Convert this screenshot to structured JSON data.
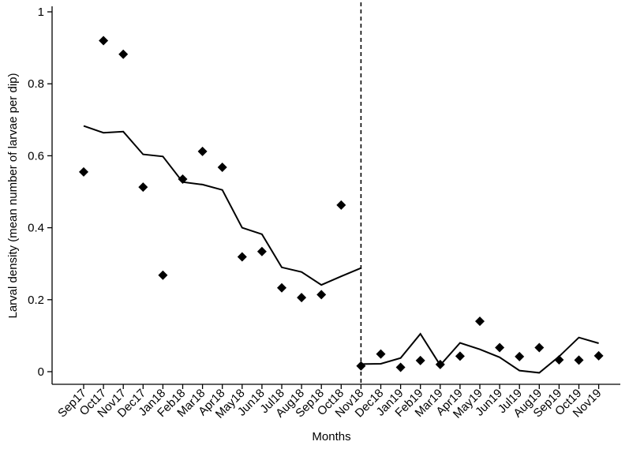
{
  "chart_data": {
    "type": "scatter",
    "title": "",
    "xlabel": "Months",
    "ylabel": "Larval density (mean number of larvae per dip)",
    "categories": [
      "Sep17",
      "Oct17",
      "Nov17",
      "Dec17",
      "Jan18",
      "Feb18",
      "Mar18",
      "Apr18",
      "May18",
      "Jun18",
      "Jul18",
      "Aug18",
      "Sep18",
      "Oct18",
      "Nov18",
      "Dec18",
      "Jan19",
      "Feb19",
      "Mar19",
      "Apr19",
      "May19",
      "Jun19",
      "Jul19",
      "Aug19",
      "Sep19",
      "Oct19",
      "Nov19"
    ],
    "ylim": [
      0,
      1
    ],
    "yticks": [
      "0",
      "0.2",
      "0.4",
      "0.6",
      "0.8",
      "1"
    ],
    "yticks_values": [
      0,
      0.2,
      0.4,
      0.6,
      0.8,
      1
    ],
    "grid": false,
    "intervention_line_at": "Nov18",
    "series": [
      {
        "type": "scatter",
        "marker": "diamond",
        "color": "#000000",
        "values": [
          0.555,
          0.92,
          0.882,
          0.513,
          0.268,
          0.535,
          0.612,
          0.568,
          0.319,
          0.334,
          0.233,
          0.206,
          0.214,
          0.463,
          0.016,
          0.049,
          0.012,
          0.031,
          0.02,
          0.043,
          0.14,
          0.067,
          0.042,
          0.067,
          0.033,
          0.032,
          0.044
        ]
      },
      {
        "type": "line",
        "color": "#000000",
        "segments": [
          {
            "from": "Sep17",
            "to": "Nov18",
            "values": [
              0.683,
              0.664,
              0.667,
              0.604,
              0.598,
              0.527,
              0.52,
              0.505,
              0.4,
              0.382,
              0.29,
              0.277,
              0.241,
              0.265,
              0.288
            ]
          },
          {
            "from": "Nov18",
            "to": "Nov19",
            "values": [
              0.021,
              0.022,
              0.038,
              0.105,
              0.018,
              0.08,
              0.062,
              0.04,
              0.003,
              -0.003,
              0.042,
              0.095,
              0.079
            ]
          }
        ]
      }
    ]
  }
}
